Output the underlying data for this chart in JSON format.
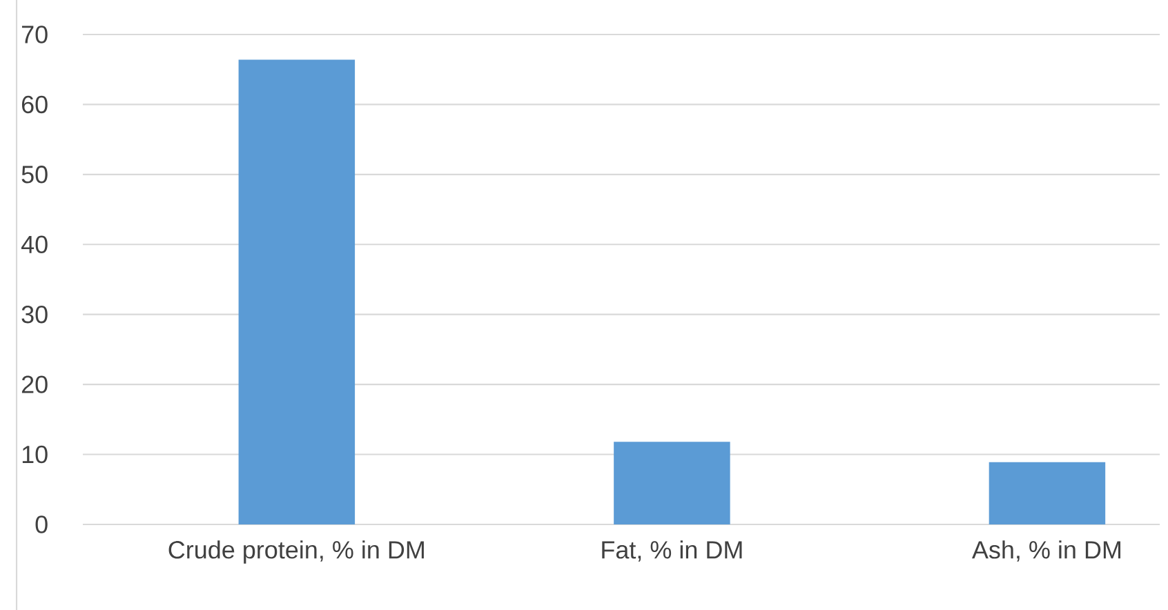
{
  "chart_data": {
    "type": "bar",
    "categories": [
      "Crude protein, % in DM",
      "Fat, % in DM",
      "Ash, % in DM"
    ],
    "values": [
      66.4,
      11.8,
      8.9
    ],
    "color": "#5b9bd5",
    "ylim": [
      0,
      70
    ],
    "yticks": [
      0,
      10,
      20,
      30,
      40,
      50,
      60,
      70
    ],
    "grid": "y"
  }
}
